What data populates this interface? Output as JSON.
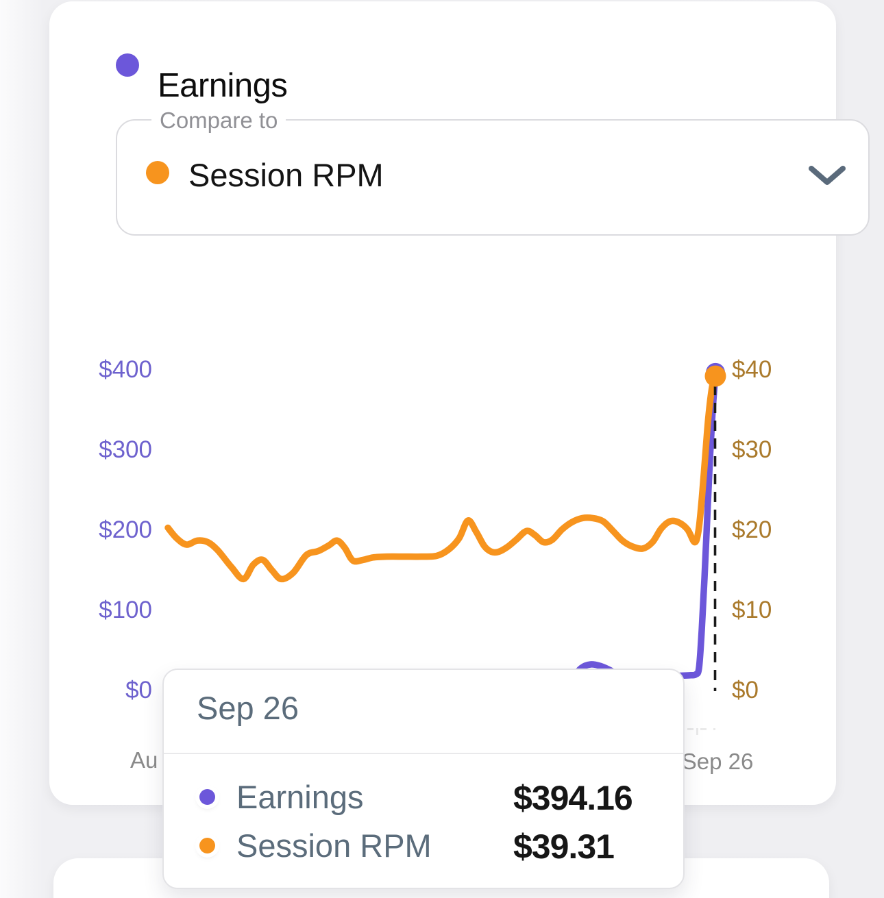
{
  "header": {
    "title": "Earnings"
  },
  "compare": {
    "label": "Compare to",
    "value": "Session RPM"
  },
  "theme": {
    "purple": "#6C57DA",
    "orange": "#F7941E",
    "left_axis_color": "#6E62CE",
    "right_axis_color": "#AA7A2C",
    "x_axis_color": "#8A8A8A",
    "tooltip_text_color": "#5B6C7B",
    "value_color": "#161616",
    "dashed_marker_color": "#1a1a1a"
  },
  "chart_data": {
    "type": "line",
    "x_ticks": [
      "Au",
      "Sep 26"
    ],
    "left_axis": {
      "name": "Earnings",
      "ticks": [
        "$400",
        "$300",
        "$200",
        "$100",
        "$0"
      ],
      "values": [
        400,
        300,
        200,
        100,
        0
      ],
      "max": 400
    },
    "right_axis": {
      "name": "Session RPM",
      "ticks": [
        "$40",
        "$30",
        "$20",
        "$10",
        "$0"
      ],
      "values": [
        40,
        30,
        20,
        10,
        0
      ],
      "max": 40
    },
    "series": [
      {
        "name": "Session RPM",
        "axis": "right",
        "color": "#F7941E",
        "points": [
          [
            0.0,
            20.3
          ],
          [
            0.016,
            19.0
          ],
          [
            0.034,
            18.2
          ],
          [
            0.054,
            18.7
          ],
          [
            0.073,
            18.5
          ],
          [
            0.091,
            17.5
          ],
          [
            0.116,
            15.4
          ],
          [
            0.138,
            13.9
          ],
          [
            0.156,
            15.7
          ],
          [
            0.173,
            16.3
          ],
          [
            0.19,
            15.0
          ],
          [
            0.207,
            13.9
          ],
          [
            0.229,
            14.7
          ],
          [
            0.253,
            16.9
          ],
          [
            0.275,
            17.4
          ],
          [
            0.294,
            18.1
          ],
          [
            0.309,
            18.7
          ],
          [
            0.323,
            17.8
          ],
          [
            0.338,
            16.2
          ],
          [
            0.357,
            16.3
          ],
          [
            0.375,
            16.6
          ],
          [
            0.4,
            16.7
          ],
          [
            0.432,
            16.7
          ],
          [
            0.463,
            16.7
          ],
          [
            0.491,
            16.8
          ],
          [
            0.513,
            17.6
          ],
          [
            0.532,
            19.0
          ],
          [
            0.548,
            21.2
          ],
          [
            0.563,
            19.8
          ],
          [
            0.578,
            18.0
          ],
          [
            0.591,
            17.3
          ],
          [
            0.604,
            17.3
          ],
          [
            0.62,
            17.9
          ],
          [
            0.636,
            18.8
          ],
          [
            0.655,
            19.9
          ],
          [
            0.67,
            19.4
          ],
          [
            0.686,
            18.5
          ],
          [
            0.702,
            18.8
          ],
          [
            0.72,
            20.1
          ],
          [
            0.738,
            21.0
          ],
          [
            0.757,
            21.5
          ],
          [
            0.776,
            21.5
          ],
          [
            0.795,
            21.1
          ],
          [
            0.813,
            19.9
          ],
          [
            0.83,
            18.7
          ],
          [
            0.847,
            18.0
          ],
          [
            0.867,
            17.7
          ],
          [
            0.885,
            18.5
          ],
          [
            0.901,
            20.2
          ],
          [
            0.917,
            21.1
          ],
          [
            0.932,
            21.0
          ],
          [
            0.949,
            20.1
          ],
          [
            0.962,
            18.5
          ],
          [
            0.969,
            19.9
          ],
          [
            0.975,
            23.8
          ],
          [
            0.981,
            28.9
          ],
          [
            0.987,
            34.0
          ],
          [
            0.994,
            37.9
          ],
          [
            1.0,
            39.31
          ]
        ]
      },
      {
        "name": "Earnings",
        "axis": "left",
        "color": "#6C57DA",
        "points": [
          [
            0.738,
            15.0
          ],
          [
            0.755,
            28.0
          ],
          [
            0.772,
            32.5
          ],
          [
            0.79,
            30.5
          ],
          [
            0.807,
            25.5
          ],
          [
            0.826,
            18.5
          ],
          [
            0.851,
            16.5
          ],
          [
            0.882,
            17.0
          ],
          [
            0.913,
            18.0
          ],
          [
            0.939,
            18.5
          ],
          [
            0.955,
            19.0
          ],
          [
            0.964,
            20.0
          ],
          [
            0.97,
            28.0
          ],
          [
            0.975,
            75.0
          ],
          [
            0.98,
            140.0
          ],
          [
            0.985,
            215.0
          ],
          [
            0.99,
            290.0
          ],
          [
            0.995,
            350.0
          ],
          [
            1.0,
            394.16
          ]
        ]
      }
    ],
    "highlight": {
      "date": "Sep 26",
      "x": 1.0,
      "earnings": 394.16,
      "session_rpm": 39.31
    }
  },
  "tooltip": {
    "date": "Sep 26",
    "rows": [
      {
        "label": "Earnings",
        "value": "$394.16",
        "color": "#6C57DA"
      },
      {
        "label": "Session RPM",
        "value": "$39.31",
        "color": "#F7941E"
      }
    ]
  }
}
